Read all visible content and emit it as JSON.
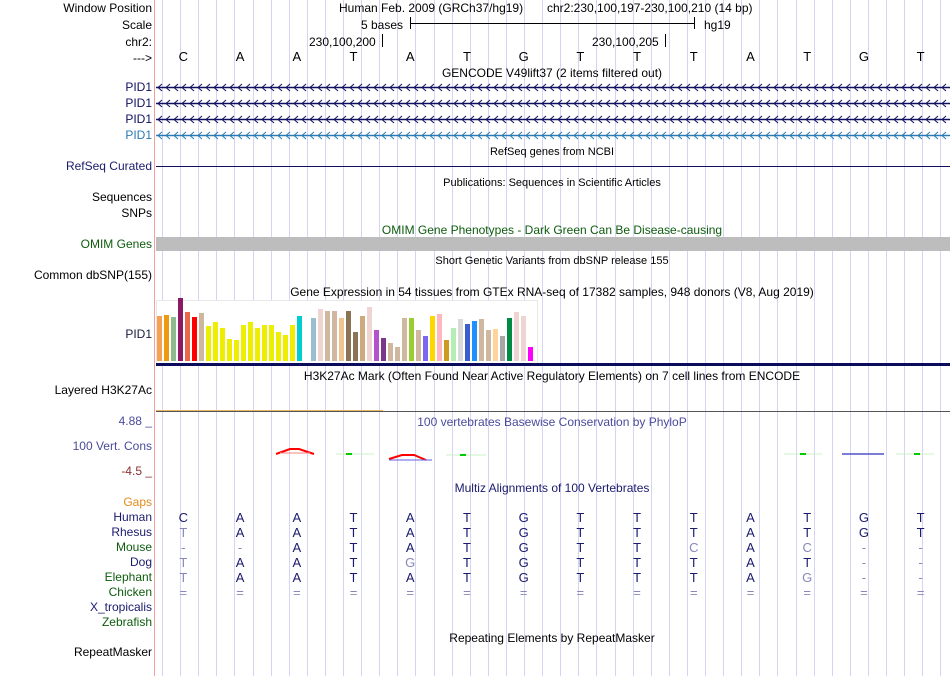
{
  "header": {
    "window_position_label": "Window Position",
    "scale_label": "Scale",
    "chrom_label": "chr2:",
    "strand_label": "--->",
    "assembly": "Human Feb. 2009 (GRCh37/hg19)",
    "position": "chr2:230,100,197-230,100,210 (14 bp)",
    "scale_text": "5 bases",
    "scale_db": "hg19",
    "tick1": "230,100,200",
    "tick2": "230,100,205"
  },
  "sequence": [
    "C",
    "A",
    "A",
    "T",
    "A",
    "T",
    "G",
    "T",
    "T",
    "T",
    "A",
    "T",
    "G",
    "T"
  ],
  "tracks": {
    "gencode": {
      "title": "GENCODE V49lift37 (2 items filtered out)",
      "items": [
        {
          "label": "PID1",
          "color": "#101060"
        },
        {
          "label": "PID1",
          "color": "#101060"
        },
        {
          "label": "PID1",
          "color": "#101060"
        },
        {
          "label": "PID1",
          "color": "#2b7ab4"
        }
      ]
    },
    "refseq": {
      "label": "RefSeq Curated",
      "title": "RefSeq genes from NCBI"
    },
    "publications": {
      "label1": "Sequences",
      "label2": "SNPs",
      "title": "Publications: Sequences in Scientific Articles"
    },
    "omim": {
      "label": "OMIM Genes",
      "title": "OMIM Gene Phenotypes - Dark Green Can Be Disease-causing"
    },
    "dbsnp": {
      "label": "Common dbSNP(155)",
      "title": "Short Genetic Variants from dbSNP release 155"
    },
    "gtex": {
      "label": "PID1",
      "title": "Gene Expression in 54 tissues from GTEx RNA-seq of 17382 samples, 948 donors (V8, Aug 2019)",
      "bars": [
        {
          "v": 0.72,
          "c": "#f7a052"
        },
        {
          "v": 0.73,
          "c": "#ee9a10"
        },
        {
          "v": 0.7,
          "c": "#8fbc8f"
        },
        {
          "v": 1.0,
          "c": "#8b1a62"
        },
        {
          "v": 0.78,
          "c": "#e8684d"
        },
        {
          "v": 0.7,
          "c": "#ff0000"
        },
        {
          "v": 0.76,
          "c": "#cdb79e"
        },
        {
          "v": 0.55,
          "c": "#eeee00"
        },
        {
          "v": 0.62,
          "c": "#eeee00"
        },
        {
          "v": 0.52,
          "c": "#eeee00"
        },
        {
          "v": 0.35,
          "c": "#eeee00"
        },
        {
          "v": 0.33,
          "c": "#eeee00"
        },
        {
          "v": 0.57,
          "c": "#eeee00"
        },
        {
          "v": 0.62,
          "c": "#eeee00"
        },
        {
          "v": 0.52,
          "c": "#eeee00"
        },
        {
          "v": 0.57,
          "c": "#eeee00"
        },
        {
          "v": 0.57,
          "c": "#eeee00"
        },
        {
          "v": 0.46,
          "c": "#eeee00"
        },
        {
          "v": 0.41,
          "c": "#eeee00"
        },
        {
          "v": 0.57,
          "c": "#eeee00"
        },
        {
          "v": 0.72,
          "c": "#00cdcd"
        },
        {
          "v": 0.0,
          "c": "#ffffff"
        },
        {
          "v": 0.69,
          "c": "#9ac0cd"
        },
        {
          "v": 0.83,
          "c": "#eed5d2"
        },
        {
          "v": 0.79,
          "c": "#d0b8a0"
        },
        {
          "v": 0.79,
          "c": "#d0b8a0"
        },
        {
          "v": 0.69,
          "c": "#eec591"
        },
        {
          "v": 0.79,
          "c": "#8b7355"
        },
        {
          "v": 0.46,
          "c": "#8b7355"
        },
        {
          "v": 0.72,
          "c": "#cdaa7d"
        },
        {
          "v": 0.85,
          "c": "#eed5d2"
        },
        {
          "v": 0.49,
          "c": "#b452cd"
        },
        {
          "v": 0.36,
          "c": "#7a378b"
        },
        {
          "v": 0.28,
          "c": "#d0b8a0"
        },
        {
          "v": 0.22,
          "c": "#d0b8a0"
        },
        {
          "v": 0.69,
          "c": "#d0b8a0"
        },
        {
          "v": 0.69,
          "c": "#9acd32"
        },
        {
          "v": 0.49,
          "c": "#d0b8a0"
        },
        {
          "v": 0.39,
          "c": "#7b68ee"
        },
        {
          "v": 0.72,
          "c": "#ffd700"
        },
        {
          "v": 0.74,
          "c": "#ffb6c1"
        },
        {
          "v": 0.34,
          "c": "#cd9b1d"
        },
        {
          "v": 0.53,
          "c": "#b4eeb4"
        },
        {
          "v": 0.67,
          "c": "#d9d9d9"
        },
        {
          "v": 0.59,
          "c": "#3a5fcd"
        },
        {
          "v": 0.64,
          "c": "#1e90ff"
        },
        {
          "v": 0.66,
          "c": "#d0b8a0"
        },
        {
          "v": 0.49,
          "c": "#d0b8a0"
        },
        {
          "v": 0.51,
          "c": "#ffd39b"
        },
        {
          "v": 0.4,
          "c": "#a6a6a6"
        },
        {
          "v": 0.68,
          "c": "#008b45"
        },
        {
          "v": 0.78,
          "c": "#eed5d2"
        },
        {
          "v": 0.72,
          "c": "#eed5d2"
        },
        {
          "v": 0.22,
          "c": "#ff00ff"
        }
      ]
    },
    "h3k27ac": {
      "label": "Layered H3K27Ac",
      "title": "H3K27Ac Mark (Often Found Near Active Regulatory Elements) on 7 cell lines from ENCODE"
    },
    "phylop": {
      "label": "100 Vert. Cons",
      "max": "4.88 _",
      "min": "-4.5 _",
      "title": "100 vertebrates Basewise Conservation by PhyloP"
    },
    "multiz": {
      "title": "Multiz Alignments of 100 Vertebrates",
      "gaps_label": "Gaps",
      "species": [
        {
          "name": "Human",
          "cls": "navy",
          "bases": [
            "C",
            "A",
            "A",
            "T",
            "A",
            "T",
            "G",
            "T",
            "T",
            "T",
            "A",
            "T",
            "G",
            "T"
          ],
          "dim": []
        },
        {
          "name": "Rhesus",
          "cls": "navy",
          "bases": [
            "T",
            "A",
            "A",
            "T",
            "A",
            "T",
            "G",
            "T",
            "T",
            "T",
            "A",
            "T",
            "G",
            "T"
          ],
          "dim": [
            0
          ]
        },
        {
          "name": "Mouse",
          "cls": "green",
          "bases": [
            "-",
            "-",
            "A",
            "T",
            "A",
            "T",
            "G",
            "T",
            "T",
            "C",
            "A",
            "C",
            "-",
            "-"
          ],
          "dim": [
            0,
            1,
            9,
            11,
            12,
            13
          ]
        },
        {
          "name": "Dog",
          "cls": "navy",
          "bases": [
            "T",
            "A",
            "A",
            "T",
            "G",
            "T",
            "G",
            "T",
            "T",
            "T",
            "A",
            "T",
            "-",
            "-"
          ],
          "dim": [
            0,
            4,
            12,
            13
          ]
        },
        {
          "name": "Elephant",
          "cls": "green",
          "bases": [
            "T",
            "A",
            "A",
            "T",
            "A",
            "T",
            "G",
            "T",
            "T",
            "T",
            "A",
            "G",
            "-",
            "-"
          ],
          "dim": [
            0,
            11,
            12,
            13
          ]
        },
        {
          "name": "Chicken",
          "cls": "green",
          "bases": [
            "=",
            "=",
            "=",
            "=",
            "=",
            "=",
            "=",
            "=",
            "=",
            "=",
            "=",
            "=",
            "=",
            "="
          ],
          "dim": [
            0,
            1,
            2,
            3,
            4,
            5,
            6,
            7,
            8,
            9,
            10,
            11,
            12,
            13
          ]
        },
        {
          "name": "X_tropicalis",
          "cls": "navy",
          "bases": [],
          "dim": []
        },
        {
          "name": "Zebrafish",
          "cls": "green",
          "bases": [],
          "dim": []
        }
      ]
    },
    "repeatmasker": {
      "label": "RepeatMasker",
      "title": "Repeating Elements by RepeatMasker"
    }
  }
}
